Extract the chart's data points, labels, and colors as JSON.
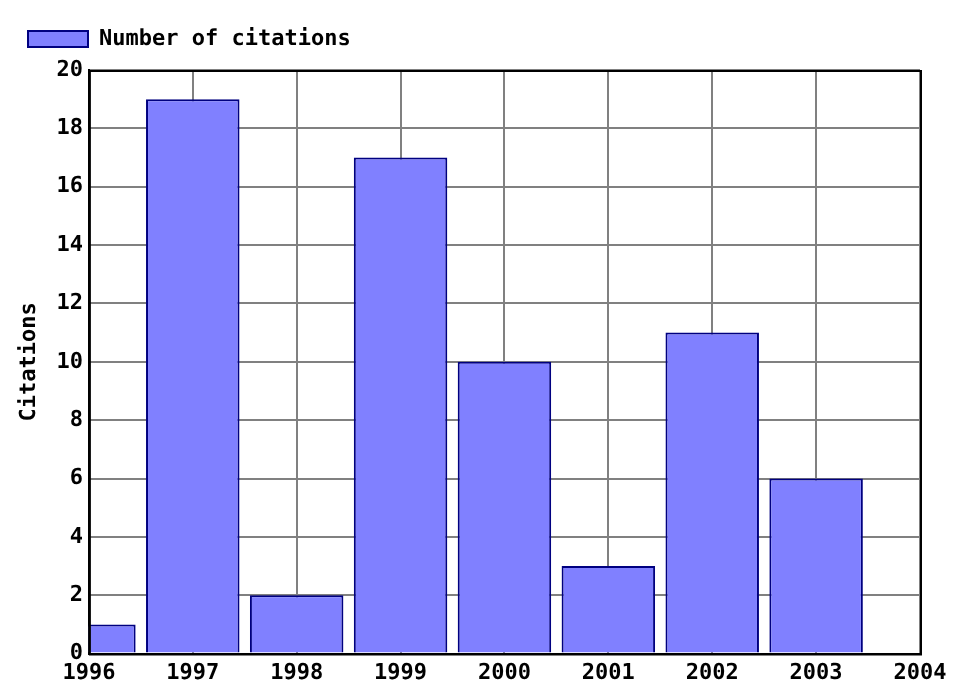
{
  "chart_data": {
    "type": "bar",
    "ylabel": "Citations",
    "x": [
      1996,
      1997,
      1998,
      1999,
      2000,
      2001,
      2002,
      2003
    ],
    "series": [
      {
        "name": "Number of citations",
        "color": "#8080ff",
        "values": [
          1,
          19,
          2,
          17,
          10,
          3,
          11,
          6
        ]
      }
    ],
    "xlim": [
      1996,
      2004
    ],
    "xticks": [
      1996,
      1997,
      1998,
      1999,
      2000,
      2001,
      2002,
      2003,
      2004
    ],
    "ylim": [
      0,
      20
    ],
    "yticks": [
      0,
      2,
      4,
      6,
      8,
      10,
      12,
      14,
      16,
      18,
      20
    ],
    "grid": true,
    "legend": "top left"
  }
}
